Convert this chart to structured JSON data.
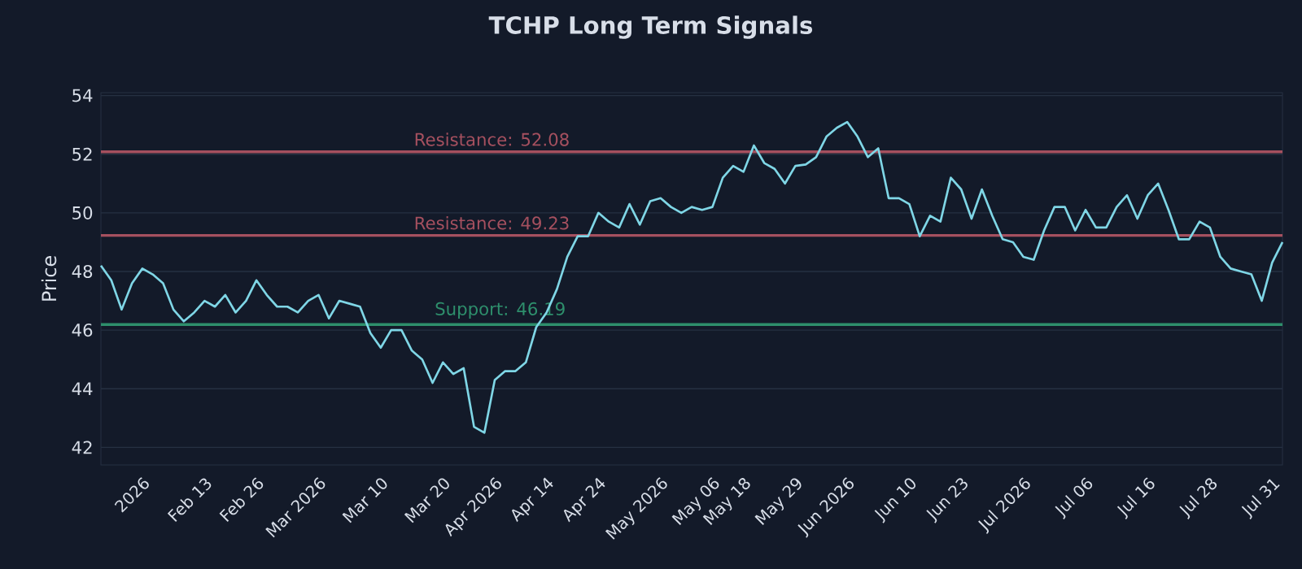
{
  "chart_data": {
    "type": "line",
    "title": "TCHP Long Term Signals",
    "ylabel": "Price",
    "ylim": [
      41.4,
      54.1
    ],
    "yticks": [
      42,
      44,
      46,
      48,
      50,
      52,
      54
    ],
    "categories": [
      null,
      null,
      null,
      null,
      "2026",
      null,
      null,
      null,
      null,
      null,
      "Feb 13",
      null,
      null,
      null,
      null,
      "Feb 26",
      null,
      null,
      null,
      null,
      null,
      "Mar 2026",
      null,
      null,
      null,
      null,
      null,
      "Mar 10",
      null,
      null,
      null,
      null,
      null,
      "Mar 20",
      null,
      null,
      null,
      null,
      "Apr 2026",
      null,
      null,
      null,
      null,
      "Apr 14",
      null,
      null,
      null,
      null,
      "Apr 24",
      null,
      null,
      null,
      null,
      null,
      "May 2026",
      null,
      null,
      null,
      null,
      "May 06",
      null,
      null,
      "May 18",
      null,
      null,
      null,
      null,
      "May 29",
      null,
      null,
      null,
      null,
      "Jun 2026",
      null,
      null,
      null,
      null,
      null,
      "Jun 10",
      null,
      null,
      null,
      null,
      "Jun 23",
      null,
      null,
      null,
      null,
      null,
      "Jul 2026",
      null,
      null,
      null,
      null,
      null,
      "Jul 06",
      null,
      null,
      null,
      null,
      null,
      "Jul 16",
      null,
      null,
      null,
      null,
      null,
      "Jul 28",
      null,
      null,
      null,
      null,
      null,
      "Jul 31",
      null
    ],
    "grid": "y",
    "marker": "none",
    "line_style": "solid",
    "series": [
      {
        "color": "#7fd6e6",
        "values": [
          48.2,
          47.7,
          46.7,
          47.6,
          48.1,
          47.9,
          47.6,
          46.7,
          46.3,
          46.6,
          47.0,
          46.8,
          47.2,
          46.6,
          47.0,
          47.7,
          47.2,
          46.8,
          46.8,
          46.6,
          47.0,
          47.2,
          46.4,
          47.0,
          46.9,
          46.8,
          45.9,
          45.4,
          46.0,
          46.0,
          45.3,
          45.0,
          44.2,
          44.9,
          44.5,
          44.7,
          42.7,
          42.5,
          44.3,
          44.6,
          44.6,
          44.9,
          46.1,
          46.6,
          47.4,
          48.5,
          49.2,
          49.2,
          50.0,
          49.7,
          49.5,
          50.3,
          49.6,
          50.4,
          50.5,
          50.2,
          50.0,
          50.2,
          50.1,
          50.2,
          51.2,
          51.6,
          51.4,
          52.3,
          51.7,
          51.5,
          51.0,
          51.6,
          51.65,
          51.9,
          52.6,
          52.9,
          53.1,
          52.6,
          51.9,
          52.2,
          50.5,
          50.5,
          50.3,
          49.2,
          49.9,
          49.7,
          51.2,
          50.8,
          49.8,
          50.8,
          49.9,
          49.1,
          49.0,
          48.5,
          48.4,
          49.4,
          50.2,
          50.2,
          49.4,
          50.1,
          49.5,
          49.5,
          50.2,
          50.6,
          49.8,
          50.6,
          51.0,
          50.1,
          49.1,
          49.1,
          49.7,
          49.5,
          48.5,
          48.1,
          48.0,
          47.9,
          47.0,
          48.3,
          49.0
        ]
      }
    ],
    "ref_lines": [
      {
        "axis": "y",
        "value": 52.08,
        "label": "Resistance: 52.08",
        "color": "#a5505f"
      },
      {
        "axis": "y",
        "value": 49.23,
        "label": "Resistance: 49.23",
        "color": "#a5505f"
      },
      {
        "axis": "y",
        "value": 46.19,
        "label": "Support: 46.19",
        "color": "#2e8f6c"
      }
    ]
  }
}
